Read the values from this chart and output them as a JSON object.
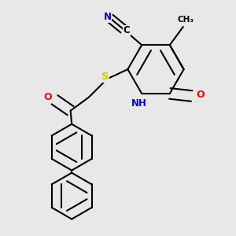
{
  "bg_color": "#e8e8e8",
  "line_color": "#000000",
  "N_color": "#0000cc",
  "O_color": "#ff0000",
  "S_color": "#cccc00",
  "bond_lw": 1.5,
  "figsize": [
    3.0,
    3.0
  ],
  "dpi": 100,
  "xlim": [
    0.05,
    0.95
  ],
  "ylim": [
    0.02,
    0.98
  ]
}
